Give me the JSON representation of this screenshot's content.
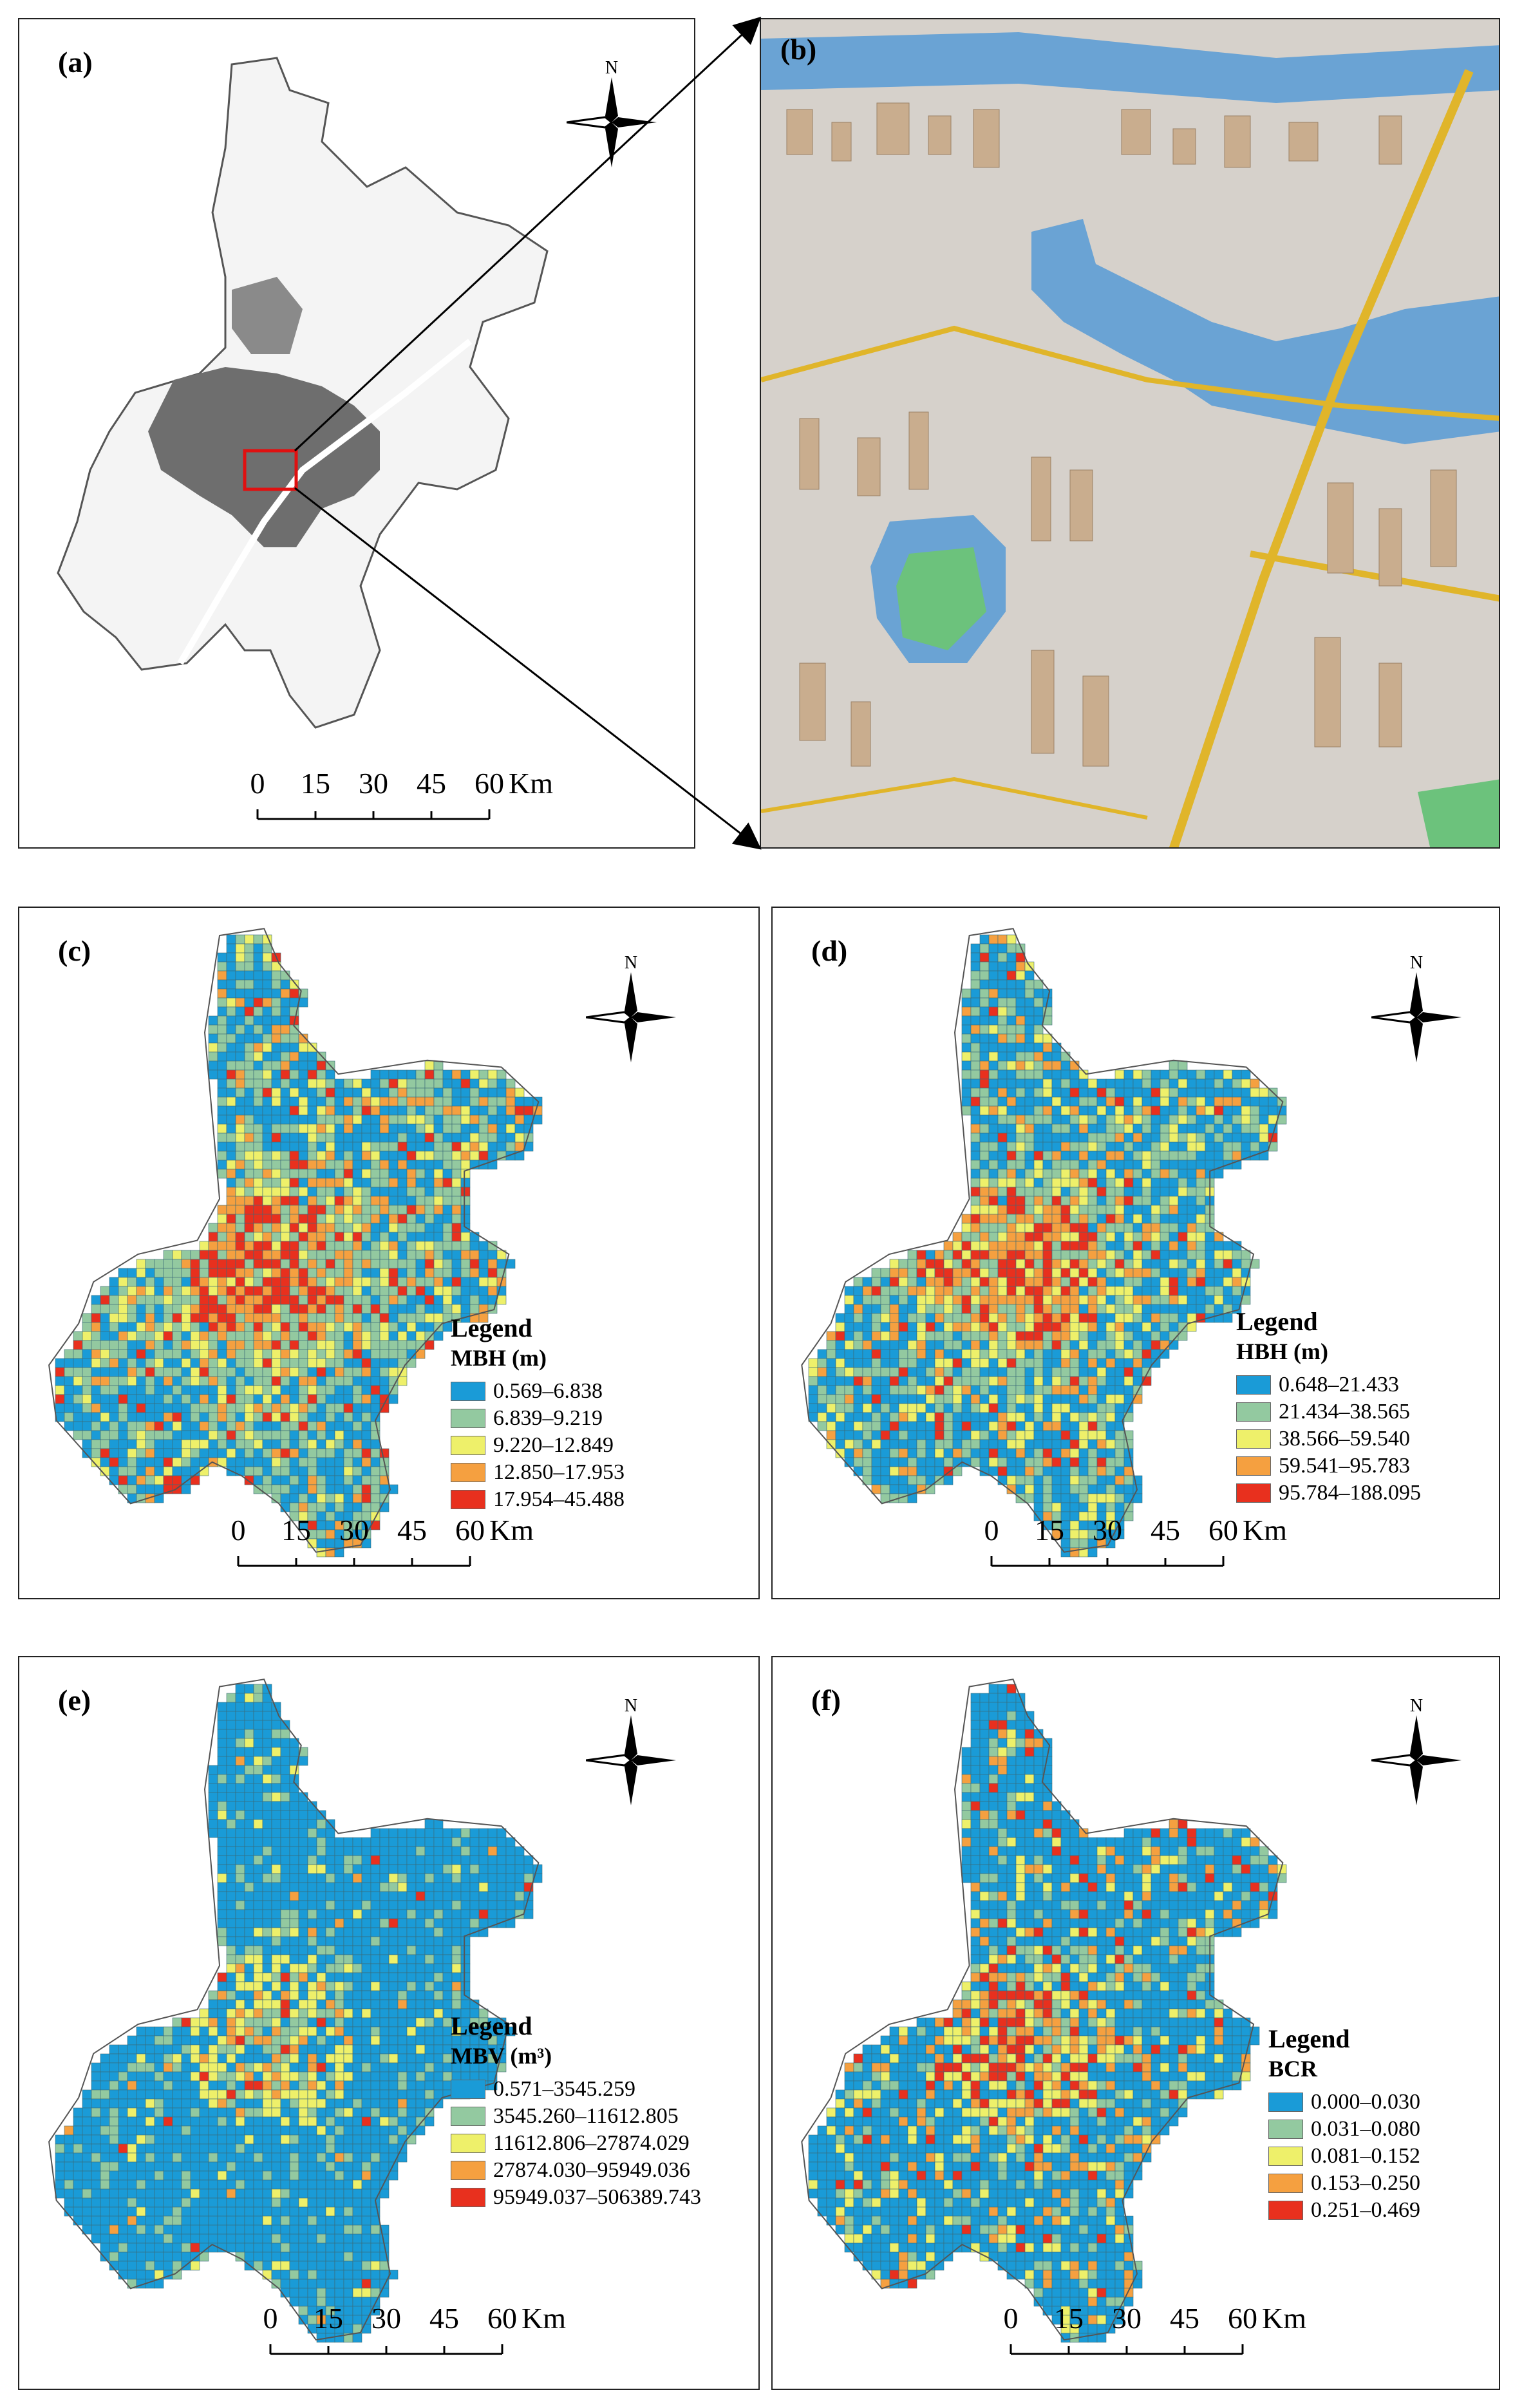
{
  "panels": {
    "a": {
      "label": "(a)"
    },
    "b": {
      "label": "(b)"
    },
    "c": {
      "label": "(c)",
      "legend_title": "Legend",
      "legend_subtitle": "MBH (m)",
      "classes": [
        "0.569–6.838",
        "6.839–9.219",
        "9.220–12.849",
        "12.850–17.953",
        "17.954–45.488"
      ]
    },
    "d": {
      "label": "(d)",
      "legend_title": "Legend",
      "legend_subtitle": "HBH (m)",
      "classes": [
        "0.648–21.433",
        "21.434–38.565",
        "38.566–59.540",
        "59.541–95.783",
        "95.784–188.095"
      ]
    },
    "e": {
      "label": "(e)",
      "legend_title": "Legend",
      "legend_subtitle": "MBV (m³)",
      "classes": [
        "0.571–3545.259",
        "3545.260–11612.805",
        "11612.806–27874.029",
        "27874.030–95949.036",
        "95949.037–506389.743"
      ]
    },
    "f": {
      "label": "(f)",
      "legend_title": "Legend",
      "legend_subtitle": "BCR",
      "classes": [
        "0.000–0.030",
        "0.031–0.080",
        "0.081–0.152",
        "0.153–0.250",
        "0.251–0.469"
      ]
    }
  },
  "north_label": "N",
  "scale_bar": {
    "ticks": [
      "0",
      "15",
      "30",
      "45",
      "60"
    ],
    "unit": "Km"
  },
  "class_colors": [
    "#1a9bd7",
    "#93c9a0",
    "#eef06a",
    "#f5a040",
    "#e8301e"
  ],
  "map_colors": {
    "urban": "#6e6e6e",
    "buildings": "#c9ad8e",
    "water": "#6aa3d4",
    "green": "#6cc27c",
    "roads": "#e0b52a",
    "ground": "#d6d1cb",
    "highlight_box": "#e01010"
  }
}
